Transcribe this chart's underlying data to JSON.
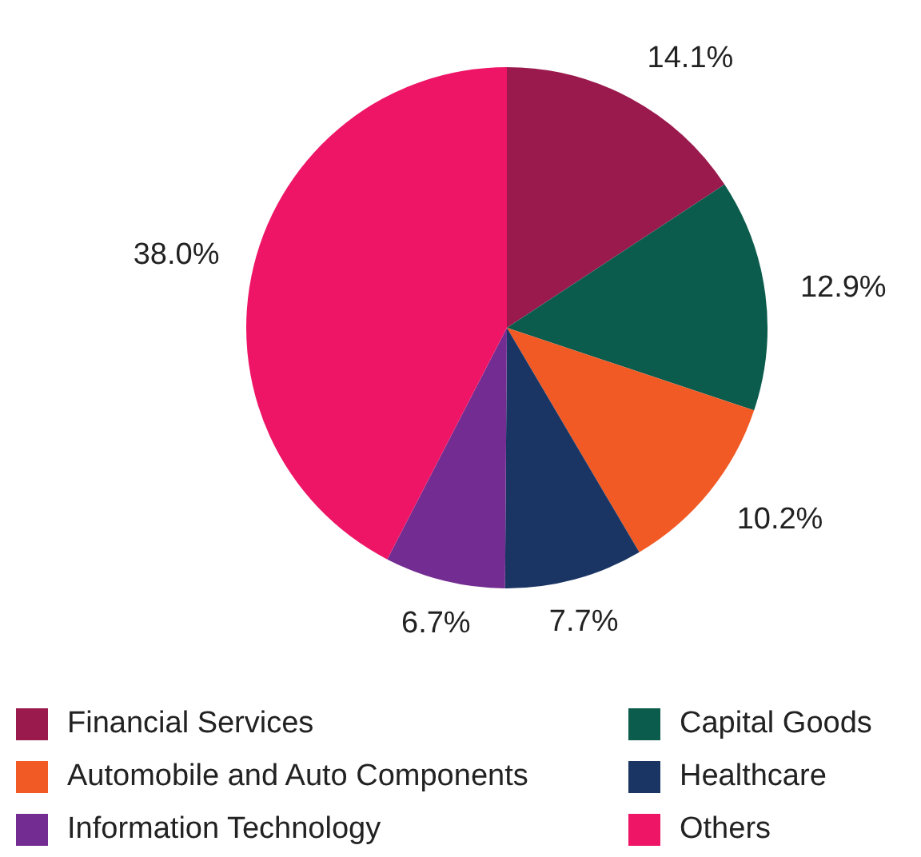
{
  "chart_data": {
    "type": "pie",
    "categories": [
      "Financial Services",
      "Capital Goods",
      "Automobile and Auto Components",
      "Healthcare",
      "Information Technology",
      "Others"
    ],
    "values": [
      14.1,
      12.9,
      10.2,
      7.7,
      6.7,
      38.0
    ],
    "value_labels": [
      "14.1%",
      "12.9%",
      "10.2%",
      "7.7%",
      "6.7%",
      "38.0%"
    ],
    "colors": [
      "#9b1a4e",
      "#0b5c4d",
      "#f15a24",
      "#1a3563",
      "#732c91",
      "#ee1566"
    ],
    "legend": "bottom"
  }
}
